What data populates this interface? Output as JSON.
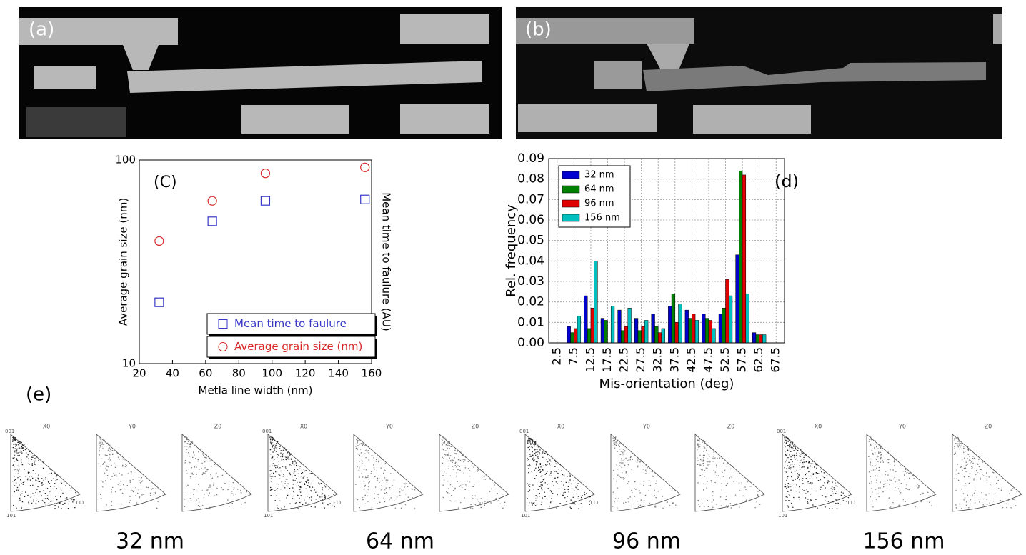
{
  "panels": {
    "a": "(a)",
    "b": "(b)",
    "e": "(e)"
  },
  "chart_data": [
    {
      "type": "scatter",
      "annotation": "(C)",
      "xlabel": "Metla line width (nm)",
      "ylabel": "Average grain size (nm)",
      "y2label": "Mean time to faulure (AU)",
      "xlim": [
        20,
        160
      ],
      "xticks": [
        20,
        40,
        60,
        80,
        100,
        120,
        140,
        160
      ],
      "ylim": [
        10,
        100
      ],
      "yticks": [
        10,
        100
      ],
      "ylog": true,
      "legend": "lower right",
      "series": [
        {
          "name": "Mean time to faulure",
          "color": "#3838c8",
          "marker": "square",
          "x": [
            32,
            64,
            96,
            156
          ],
          "values": [
            20,
            50,
            63,
            64
          ]
        },
        {
          "name": "Average grain size (nm)",
          "color": "#d82828",
          "marker": "circle",
          "x": [
            32,
            64,
            96,
            156
          ],
          "values": [
            40,
            63,
            86,
            92
          ]
        }
      ]
    },
    {
      "type": "bar",
      "annotation": "(d)",
      "xlabel": "Mis-orientation (deg)",
      "ylabel": "Rel. frequency",
      "categories": [
        "2.5",
        "7.5",
        "12.5",
        "17.5",
        "22.5",
        "27.5",
        "32.5",
        "37.5",
        "42.5",
        "47.5",
        "52.5",
        "57.5",
        "62.5",
        "67.5"
      ],
      "ylim": [
        0,
        0.09
      ],
      "yticks": [
        {
          "value": 0,
          "label": "0.00"
        },
        {
          "value": 0.01,
          "label": "0.01"
        },
        {
          "value": 0.02,
          "label": "0.02"
        },
        {
          "value": 0.03,
          "label": "0.03"
        },
        {
          "value": 0.04,
          "label": "0.04"
        },
        {
          "value": 0.05,
          "label": "0.05"
        },
        {
          "value": 0.06,
          "label": "0.06"
        },
        {
          "value": 0.07,
          "label": "0.07"
        },
        {
          "value": 0.08,
          "label": "0.08"
        },
        {
          "value": 0.09,
          "label": "0.09"
        }
      ],
      "grid": true,
      "legend": "upper left",
      "series": [
        {
          "name": "32 nm",
          "color": "#0000cc",
          "values": [
            0,
            0.008,
            0.023,
            0.012,
            0.016,
            0.012,
            0.014,
            0.018,
            0.016,
            0.014,
            0.014,
            0.043,
            0.005,
            0
          ]
        },
        {
          "name": "64 nm",
          "color": "#007f00",
          "values": [
            0,
            0.005,
            0.007,
            0.011,
            0.006,
            0.006,
            0.008,
            0.024,
            0.012,
            0.012,
            0.017,
            0.084,
            0.004,
            0
          ]
        },
        {
          "name": "96 nm",
          "color": "#e00000",
          "values": [
            0,
            0.007,
            0.017,
            0,
            0.008,
            0.008,
            0.005,
            0.01,
            0.014,
            0.011,
            0.031,
            0.082,
            0.004,
            0
          ]
        },
        {
          "name": "156 nm",
          "color": "#00bfbf",
          "values": [
            0,
            0.013,
            0.04,
            0.018,
            0.017,
            0.011,
            0.007,
            0.019,
            0.011,
            0.007,
            0.023,
            0.024,
            0.004,
            0
          ]
        }
      ]
    }
  ],
  "pole_figures": [
    {
      "label": "32 nm",
      "figures": [
        "X0",
        "Y0",
        "Z0"
      ],
      "corners": [
        "001",
        "101",
        "111"
      ]
    },
    {
      "label": "64 nm",
      "figures": [
        "X0",
        "Y0",
        "Z0"
      ],
      "corners": [
        "001",
        "101",
        "111"
      ]
    },
    {
      "label": "96 nm",
      "figures": [
        "X0",
        "Y0",
        "Z0"
      ],
      "corners": [
        "001",
        "101",
        "111"
      ]
    },
    {
      "label": "156 nm",
      "figures": [
        "X0",
        "Y0",
        "Z0"
      ],
      "corners": [
        "001",
        "101",
        "111"
      ]
    }
  ]
}
